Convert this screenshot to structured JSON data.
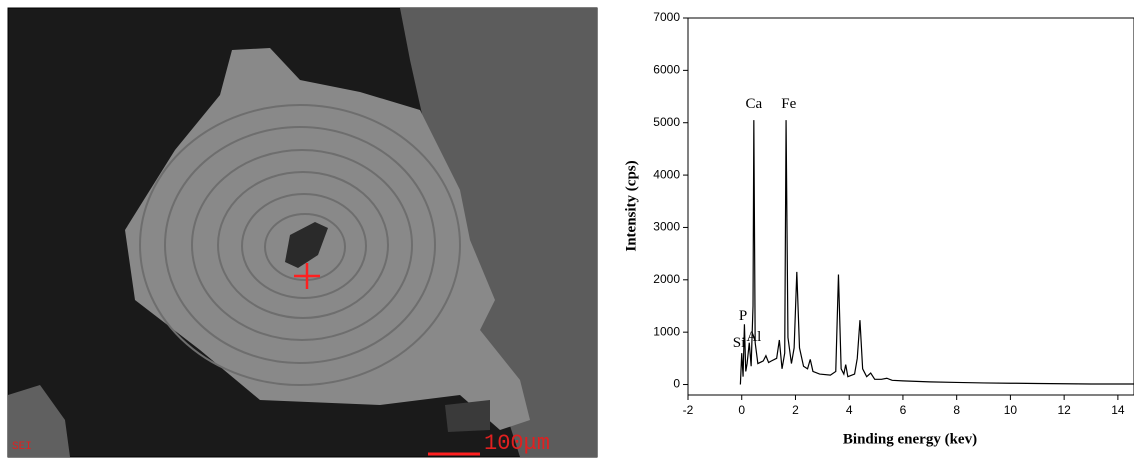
{
  "image": {
    "label": "SEI",
    "scale_bar": "100μm"
  },
  "chart_data": {
    "type": "line",
    "x_label": "Binding energy (kev)",
    "y_label": "Intensity (cps)",
    "color": "#000000",
    "x": [
      -0.05,
      0.0,
      0.05,
      0.1,
      0.15,
      0.2,
      0.28,
      0.35,
      0.42,
      0.45,
      0.5,
      0.6,
      0.8,
      0.9,
      1.0,
      1.1,
      1.3,
      1.4,
      1.5,
      1.6,
      1.65,
      1.72,
      1.85,
      1.95,
      2.05,
      2.15,
      2.3,
      2.45,
      2.55,
      2.65,
      2.9,
      3.3,
      3.5,
      3.6,
      3.7,
      3.8,
      3.87,
      3.95,
      4.2,
      4.3,
      4.4,
      4.5,
      4.65,
      4.8,
      4.95,
      5.2,
      5.4,
      5.6,
      6,
      7,
      8,
      9,
      10,
      11,
      12,
      13,
      14,
      14.6
    ],
    "values": [
      0,
      600,
      150,
      1150,
      250,
      400,
      800,
      350,
      1500,
      5050,
      800,
      400,
      450,
      550,
      420,
      450,
      500,
      850,
      300,
      600,
      5050,
      900,
      400,
      700,
      2150,
      700,
      350,
      300,
      480,
      250,
      200,
      180,
      250,
      2100,
      300,
      200,
      380,
      150,
      200,
      500,
      1230,
      300,
      150,
      220,
      100,
      100,
      120,
      80,
      70,
      50,
      40,
      30,
      25,
      20,
      15,
      10,
      10,
      10
    ],
    "xlim": [
      -2,
      14.6
    ],
    "ylim": [
      -200,
      7000
    ],
    "xticks": [
      -2,
      0,
      2,
      4,
      6,
      8,
      10,
      12,
      14
    ],
    "yticks": [
      0,
      1000,
      2000,
      3000,
      4000,
      5000,
      6000,
      7000
    ],
    "annotations": [
      {
        "text": "Ca",
        "x": 0.45,
        "y": 5350
      },
      {
        "text": "Fe",
        "x": 1.75,
        "y": 5350
      },
      {
        "text": "P",
        "x": 0.05,
        "y": 1300
      },
      {
        "text": "Al",
        "x": 0.45,
        "y": 900
      },
      {
        "text": "Si",
        "x": -0.1,
        "y": 780
      }
    ]
  }
}
